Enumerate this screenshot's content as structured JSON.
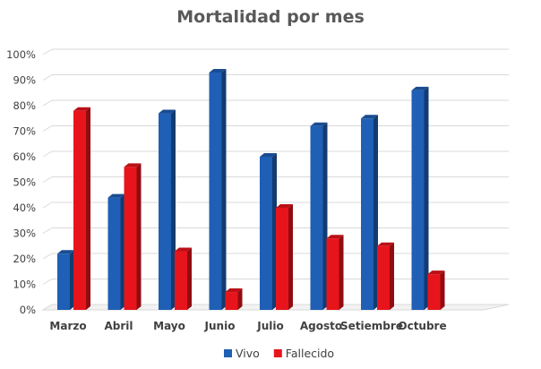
{
  "chart_data": {
    "type": "bar",
    "title": "Mortalidad por mes",
    "categories": [
      "Marzo",
      "Abril",
      "Mayo",
      "Junio",
      "Julio",
      "Agosto",
      "Setiembre",
      "Octubre"
    ],
    "series": [
      {
        "name": "Vivo",
        "color": "#1f5fb5",
        "values": [
          22,
          44,
          77,
          93,
          60,
          72,
          75,
          86
        ]
      },
      {
        "name": "Fallecido",
        "color": "#e8141c",
        "values": [
          78,
          56,
          23,
          7,
          40,
          28,
          25,
          14
        ]
      }
    ],
    "y_ticks": [
      "0%",
      "10%",
      "20%",
      "30%",
      "40%",
      "50%",
      "60%",
      "70%",
      "80%",
      "90%",
      "100%"
    ],
    "ylim": [
      0,
      100
    ],
    "grid": true,
    "style": "3d-clustered-column",
    "legend_position": "bottom"
  }
}
